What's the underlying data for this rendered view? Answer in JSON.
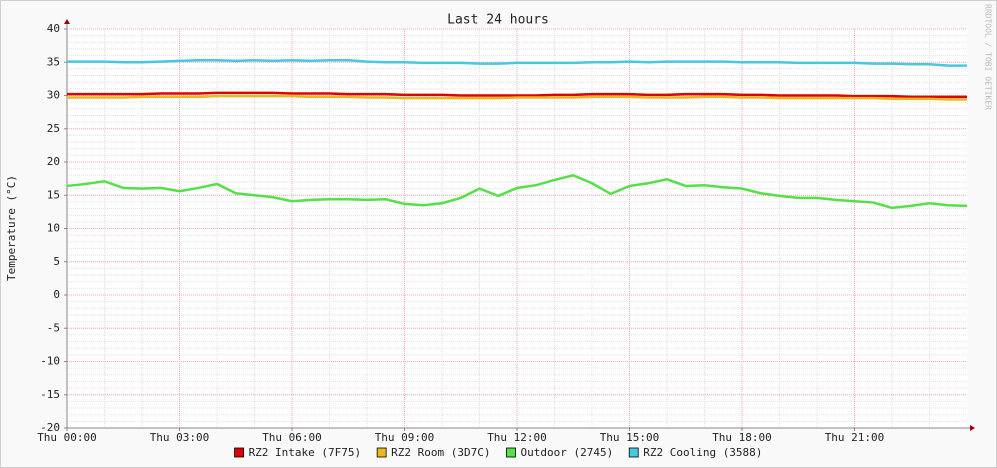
{
  "chart_data": {
    "type": "line",
    "title": "Last 24 hours",
    "y_label": "Temperature (°C)",
    "watermark": "RRDTOOL / TOBI OETIKER",
    "x": [
      0,
      0.5,
      1,
      1.5,
      2,
      2.5,
      3,
      3.5,
      4,
      4.5,
      5,
      5.5,
      6,
      6.5,
      7,
      7.5,
      8,
      8.5,
      9,
      9.5,
      10,
      10.5,
      11,
      11.5,
      12,
      12.5,
      13,
      13.5,
      14,
      14.5,
      15,
      15.5,
      16,
      16.5,
      17,
      17.5,
      18,
      18.5,
      19,
      19.5,
      20,
      20.5,
      21,
      21.5,
      22,
      22.5,
      23,
      23.5,
      24
    ],
    "xlim": [
      0,
      24
    ],
    "xticks": [
      {
        "value": 0,
        "label": "Thu 00:00"
      },
      {
        "value": 3,
        "label": "Thu 03:00"
      },
      {
        "value": 6,
        "label": "Thu 06:00"
      },
      {
        "value": 9,
        "label": "Thu 09:00"
      },
      {
        "value": 12,
        "label": "Thu 12:00"
      },
      {
        "value": 15,
        "label": "Thu 15:00"
      },
      {
        "value": 18,
        "label": "Thu 18:00"
      },
      {
        "value": 21,
        "label": "Thu 21:00"
      }
    ],
    "ylim": [
      -20,
      40
    ],
    "yticks": [
      -20,
      -15,
      -10,
      -5,
      0,
      5,
      10,
      15,
      20,
      25,
      30,
      35,
      40
    ],
    "grid": true,
    "legend": "bottom",
    "series": [
      {
        "name": "RZ2 Intake (7F75)",
        "color": "#e00000",
        "values": [
          30.2,
          30.2,
          30.2,
          30.2,
          30.2,
          30.3,
          30.3,
          30.3,
          30.4,
          30.4,
          30.4,
          30.4,
          30.3,
          30.3,
          30.3,
          30.2,
          30.2,
          30.2,
          30.1,
          30.1,
          30.1,
          30.0,
          30.0,
          30.0,
          30.0,
          30.0,
          30.1,
          30.1,
          30.2,
          30.2,
          30.2,
          30.1,
          30.1,
          30.2,
          30.2,
          30.2,
          30.1,
          30.1,
          30.0,
          30.0,
          30.0,
          30.0,
          29.9,
          29.9,
          29.9,
          29.8,
          29.8,
          29.8,
          29.8
        ]
      },
      {
        "name": "RZ2 Room (3D7C)",
        "color": "#e8b820",
        "values": [
          29.7,
          29.7,
          29.7,
          29.7,
          29.8,
          29.8,
          29.8,
          29.8,
          29.9,
          29.9,
          29.9,
          29.9,
          29.9,
          29.8,
          29.8,
          29.8,
          29.7,
          29.7,
          29.6,
          29.6,
          29.6,
          29.6,
          29.6,
          29.6,
          29.7,
          29.7,
          29.7,
          29.7,
          29.8,
          29.8,
          29.8,
          29.7,
          29.7,
          29.7,
          29.8,
          29.8,
          29.7,
          29.7,
          29.6,
          29.6,
          29.6,
          29.6,
          29.6,
          29.6,
          29.5,
          29.5,
          29.5,
          29.4,
          29.4
        ]
      },
      {
        "name": "Outdoor (2745)",
        "color": "#54e048",
        "values": [
          16.4,
          16.7,
          17.1,
          16.1,
          16.0,
          16.1,
          15.6,
          16.1,
          16.7,
          15.3,
          15.0,
          14.7,
          14.1,
          14.3,
          14.4,
          14.4,
          14.3,
          14.4,
          13.7,
          13.5,
          13.8,
          14.6,
          16.0,
          14.9,
          16.1,
          16.5,
          17.3,
          18.0,
          16.8,
          15.2,
          16.4,
          16.8,
          17.4,
          16.4,
          16.5,
          16.2,
          16.0,
          15.3,
          14.9,
          14.6,
          14.6,
          14.3,
          14.1,
          13.9,
          13.1,
          13.4,
          13.8,
          13.5,
          13.4
        ]
      },
      {
        "name": "RZ2 Cooling (3588)",
        "color": "#48c8e0",
        "values": [
          35.1,
          35.1,
          35.1,
          35.0,
          35.0,
          35.1,
          35.2,
          35.3,
          35.3,
          35.2,
          35.3,
          35.2,
          35.3,
          35.2,
          35.3,
          35.3,
          35.1,
          35.0,
          35.0,
          34.9,
          34.9,
          34.9,
          34.8,
          34.8,
          34.9,
          34.9,
          34.9,
          34.9,
          35.0,
          35.0,
          35.1,
          35.0,
          35.1,
          35.1,
          35.1,
          35.1,
          35.0,
          35.0,
          35.0,
          34.9,
          34.9,
          34.9,
          34.9,
          34.8,
          34.8,
          34.7,
          34.7,
          34.5,
          34.5
        ]
      }
    ]
  }
}
